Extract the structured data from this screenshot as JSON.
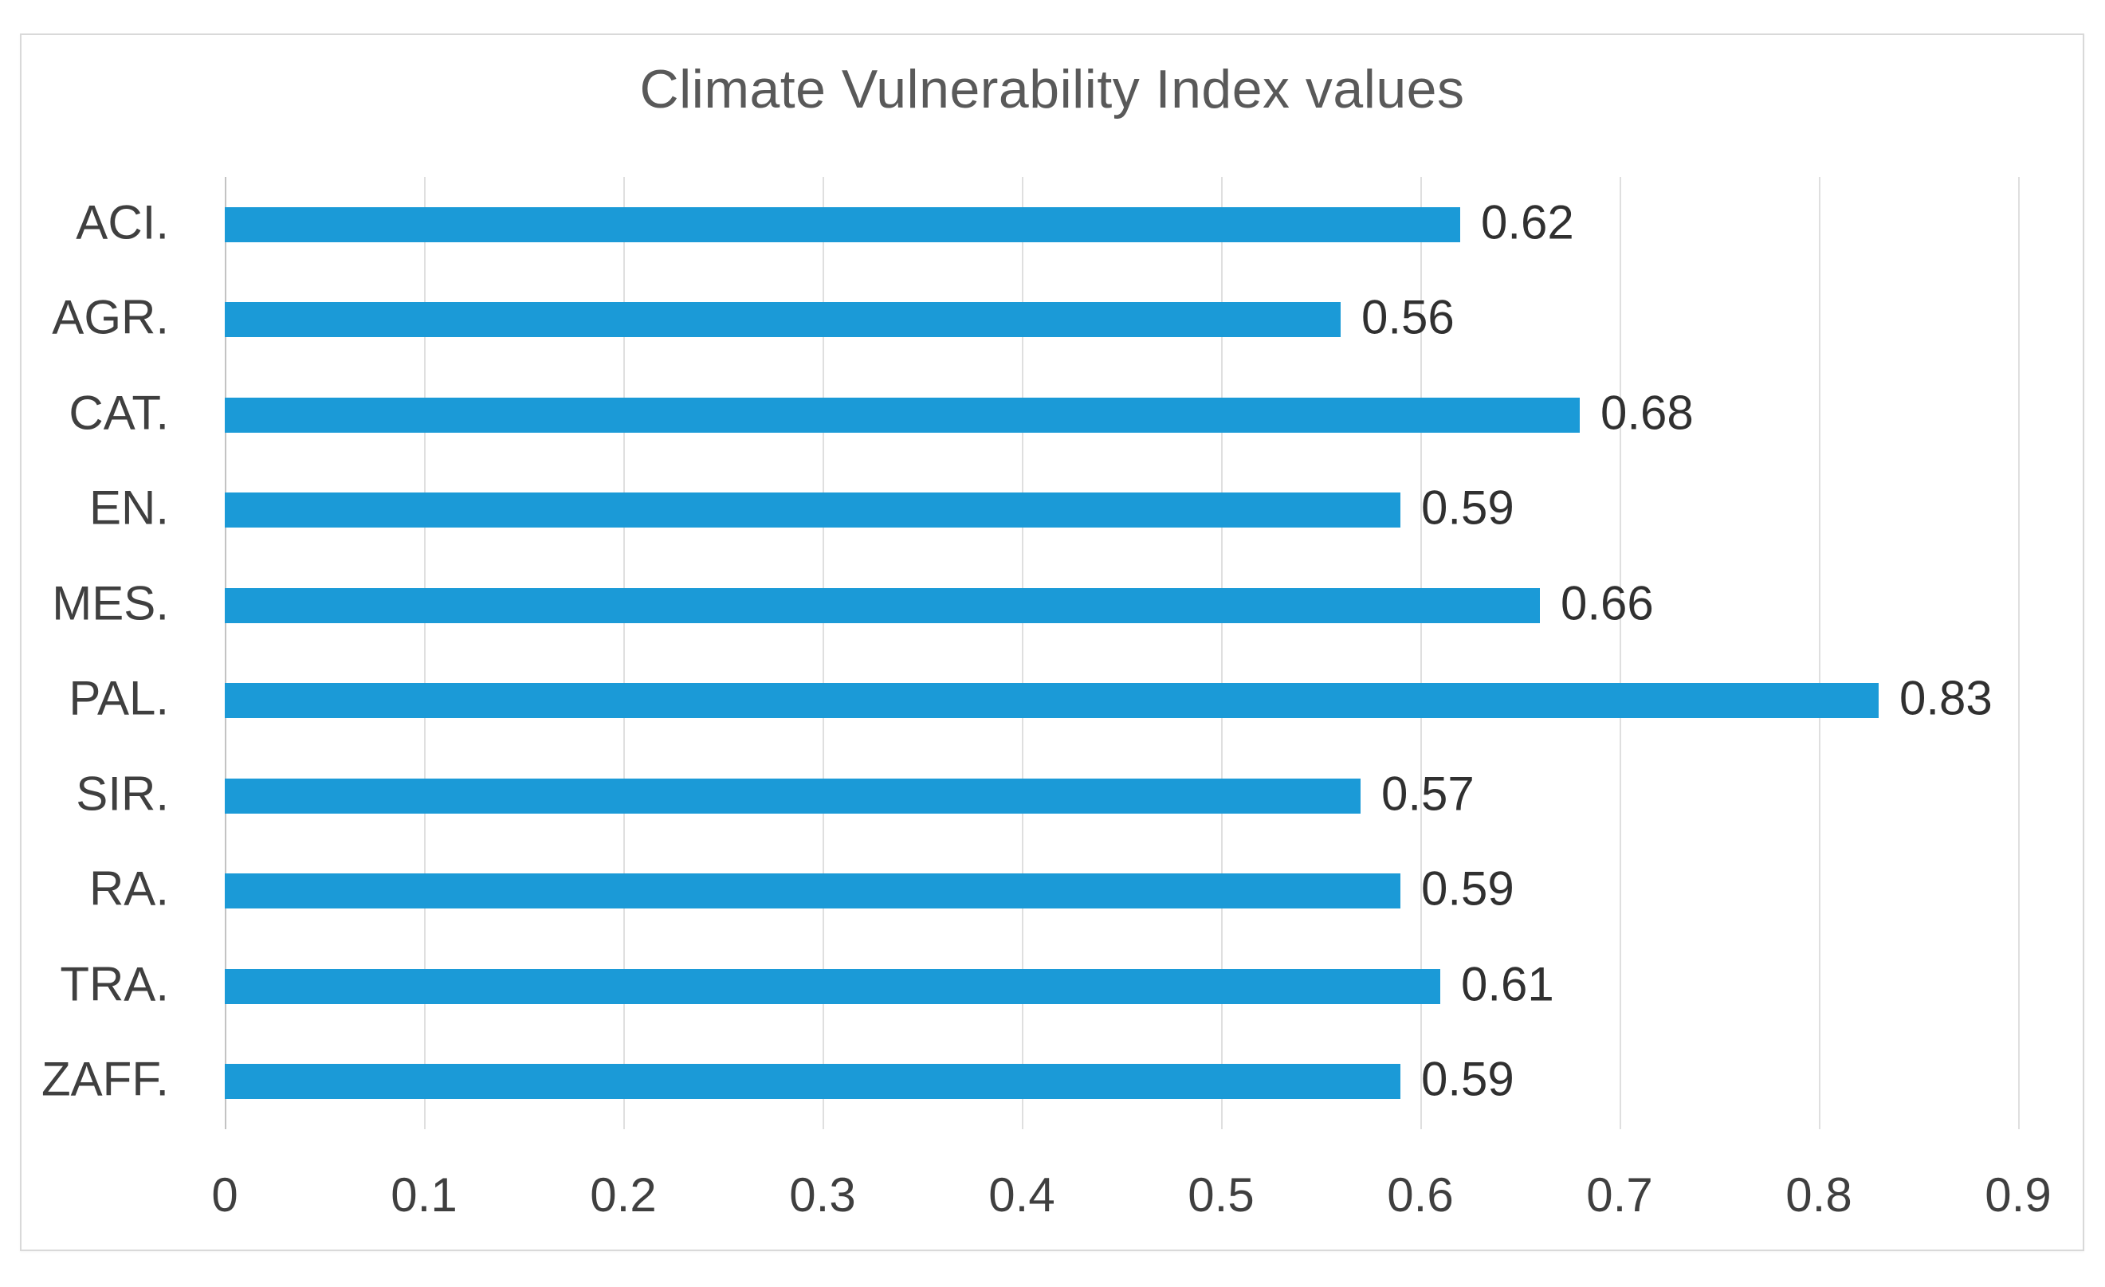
{
  "chart_data": {
    "type": "bar",
    "orientation": "horizontal",
    "title": "Climate Vulnerability Index values",
    "categories": [
      "ACI.",
      "AGR.",
      "CAT.",
      "EN.",
      "MES.",
      "PAL.",
      "SIR.",
      "RA.",
      "TRA.",
      "ZAFF."
    ],
    "values": [
      0.62,
      0.56,
      0.68,
      0.59,
      0.66,
      0.83,
      0.57,
      0.59,
      0.61,
      0.59
    ],
    "data_labels": [
      "0.62",
      "0.56",
      "0.68",
      "0.59",
      "0.66",
      "0.83",
      "0.57",
      "0.59",
      "0.61",
      "0.59"
    ],
    "x_ticks": [
      "0",
      "0.1",
      "0.2",
      "0.3",
      "0.4",
      "0.5",
      "0.6",
      "0.7",
      "0.8",
      "0.9"
    ],
    "xlabel": "",
    "ylabel": "",
    "xlim": [
      0,
      0.9
    ],
    "grid": "vertical",
    "legend": "none",
    "colors": {
      "bar": "#1B9AD7",
      "gridline": "#DFDFDF",
      "axis_line": "#C3C3C3",
      "title": "#595959",
      "category_label": "#3F3F3F",
      "tick_label": "#3F3F3F",
      "data_label": "#303030",
      "border": "#D9D9D9",
      "background": "#FFFFFF"
    }
  }
}
